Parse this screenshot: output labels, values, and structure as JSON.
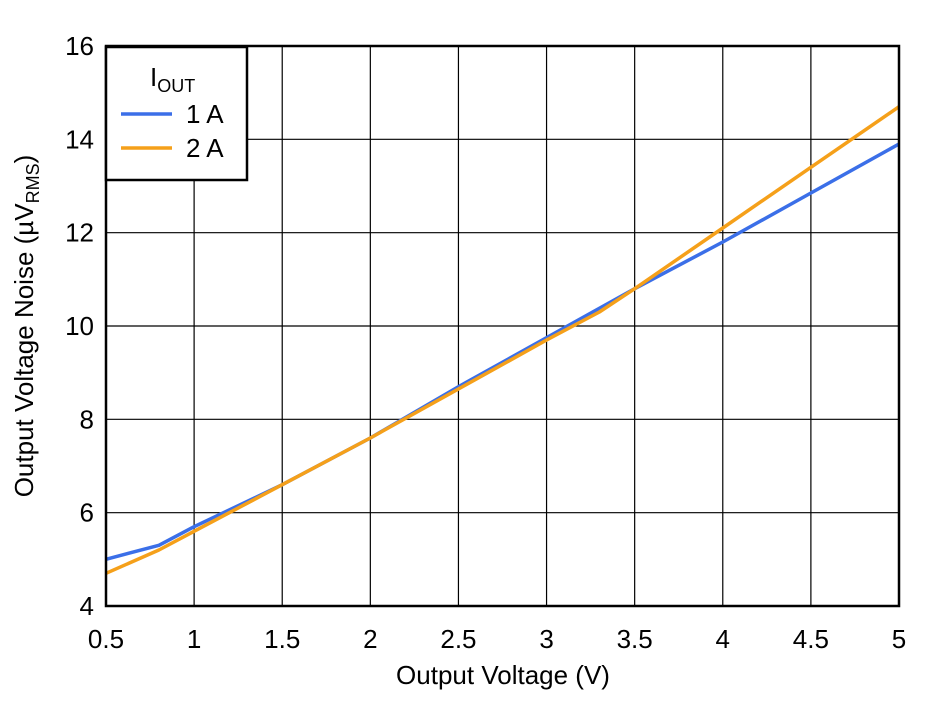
{
  "chart_data": {
    "type": "line",
    "xlabel": "Output Voltage (V)",
    "ylabel": {
      "main": "Output Voltage Noise (µV",
      "sub": "RMS",
      "close": ")"
    },
    "xlim": [
      0.5,
      5
    ],
    "ylim": [
      4,
      16
    ],
    "xticks": [
      0.5,
      1,
      1.5,
      2,
      2.5,
      3,
      3.5,
      4,
      4.5,
      5
    ],
    "xtick_labels": [
      "0.5",
      "1",
      "1.5",
      "2",
      "2.5",
      "3",
      "3.5",
      "4",
      "4.5",
      "5"
    ],
    "yticks": [
      4,
      6,
      8,
      10,
      12,
      14,
      16
    ],
    "ytick_labels": [
      "4",
      "6",
      "8",
      "10",
      "12",
      "14",
      "16"
    ],
    "grid": true,
    "legend": {
      "title_main": "I",
      "title_sub": "OUT",
      "placement": "top-left"
    },
    "series": [
      {
        "name": "1 A",
        "color": "#3b6fe8",
        "x": [
          0.5,
          0.8,
          1.0,
          1.5,
          2.0,
          2.5,
          3.0,
          3.5,
          4.0,
          4.5,
          5.0
        ],
        "y": [
          5.0,
          5.3,
          5.7,
          6.6,
          7.6,
          8.7,
          9.75,
          10.8,
          11.8,
          12.85,
          13.9
        ]
      },
      {
        "name": "2 A",
        "color": "#f5a01a",
        "x": [
          0.5,
          0.8,
          1.0,
          1.5,
          2.0,
          2.5,
          3.0,
          3.3,
          3.5,
          4.0,
          4.5,
          5.0
        ],
        "y": [
          4.7,
          5.2,
          5.6,
          6.6,
          7.6,
          8.65,
          9.7,
          10.3,
          10.8,
          12.1,
          13.4,
          14.7
        ]
      }
    ]
  }
}
